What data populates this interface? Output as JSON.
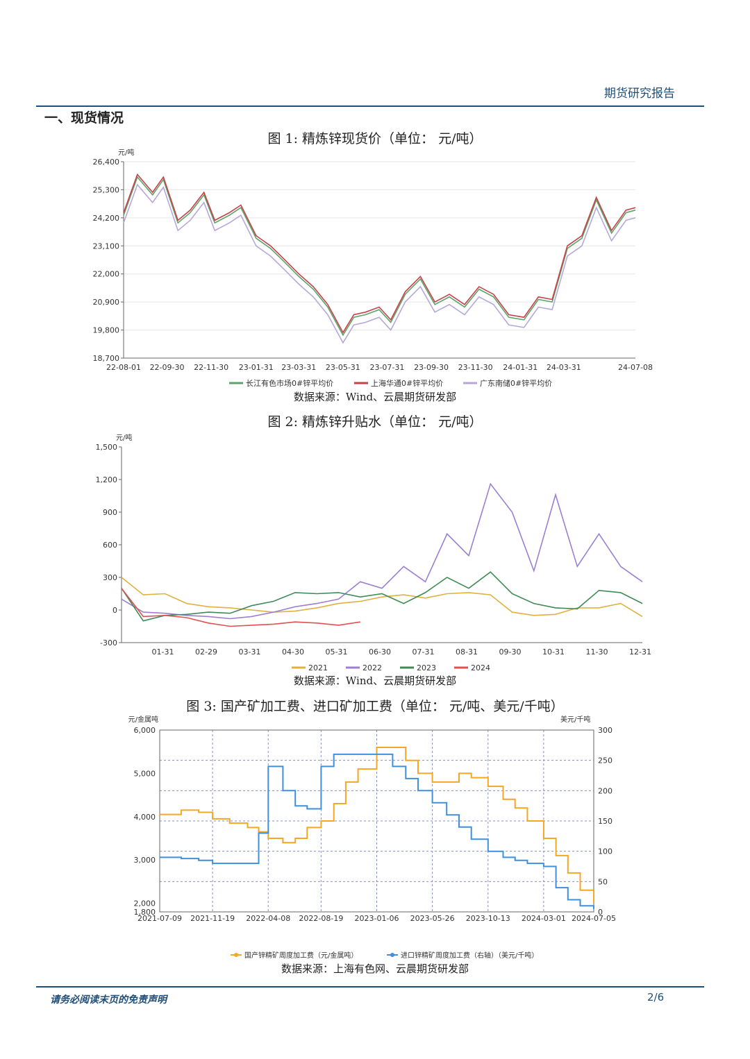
{
  "header": {
    "report_type": "期货研究报告"
  },
  "section": {
    "title": "一、现货情况"
  },
  "footer": {
    "disclaimer": "请务必阅读末页的免责声明",
    "page": "2/6"
  },
  "charts": [
    {
      "title": "图 1:  精炼锌现货价（单位： 元/吨）",
      "source": "数据来源：Wind、云晨期货研发部"
    },
    {
      "title": "图 2:  精炼锌升贴水（单位： 元/吨）",
      "source": "数据来源：Wind、云晨期货研发部"
    },
    {
      "title": "图 3:  国产矿加工费、进口矿加工费（单位： 元/吨、美元/千吨）",
      "source": "数据来源：上海有色网、云晨期货研发部"
    }
  ],
  "chart_data": [
    {
      "type": "line",
      "title": "图 1:  精炼锌现货价（单位： 元/吨）",
      "ylabel": "元/吨",
      "ylim": [
        18700,
        26400
      ],
      "yticks": [
        18700,
        19800,
        20900,
        22000,
        23100,
        24200,
        25300,
        26400
      ],
      "ytick_labels": [
        "18,700",
        "19,800",
        "20,900",
        "22,000",
        "23,100",
        "24,200",
        "25,300",
        "26,400"
      ],
      "xtick_labels": [
        "22-08-01",
        "22-09-30",
        "22-11-30",
        "23-01-31",
        "23-03-31",
        "23-05-31",
        "23-07-31",
        "23-09-30",
        "23-11-30",
        "24-01-31",
        "24-03-31",
        "24-07-08"
      ],
      "x_dates": [
        "2022-08-01",
        "2022-08-20",
        "2022-09-10",
        "2022-09-25",
        "2022-10-15",
        "2022-11-01",
        "2022-11-20",
        "2022-12-05",
        "2022-12-25",
        "2023-01-10",
        "2023-01-31",
        "2023-02-20",
        "2023-03-10",
        "2023-03-31",
        "2023-04-20",
        "2023-05-10",
        "2023-05-31",
        "2023-06-15",
        "2023-07-01",
        "2023-07-20",
        "2023-08-05",
        "2023-08-25",
        "2023-09-15",
        "2023-10-05",
        "2023-10-25",
        "2023-11-15",
        "2023-12-05",
        "2023-12-25",
        "2024-01-15",
        "2024-02-05",
        "2024-02-25",
        "2024-03-15",
        "2024-04-05",
        "2024-04-25",
        "2024-05-15",
        "2024-06-05",
        "2024-06-25",
        "2024-07-08"
      ],
      "grid": true,
      "legend": "bottom",
      "series": [
        {
          "name": "长江有色市场0#锌平均价",
          "color": "#5aa469",
          "values": [
            24300,
            25800,
            25100,
            25700,
            24000,
            24400,
            25100,
            24000,
            24300,
            24600,
            23400,
            23000,
            22500,
            21900,
            21400,
            20700,
            19600,
            20300,
            20400,
            20600,
            20100,
            21200,
            21800,
            20800,
            21100,
            20700,
            21400,
            21100,
            20300,
            20200,
            21000,
            20900,
            23000,
            23400,
            24900,
            23600,
            24400,
            24500
          ]
        },
        {
          "name": "上海华通0#锌平均价",
          "color": "#c8404a",
          "values": [
            24400,
            25900,
            25200,
            25800,
            24100,
            24500,
            25200,
            24100,
            24400,
            24700,
            23500,
            23100,
            22600,
            22000,
            21500,
            20800,
            19700,
            20400,
            20500,
            20700,
            20200,
            21300,
            21900,
            20900,
            21200,
            20800,
            21500,
            21200,
            20400,
            20300,
            21100,
            21000,
            23100,
            23500,
            25000,
            23700,
            24500,
            24600
          ]
        },
        {
          "name": "广东南储0#锌平均价",
          "color": "#b7a7d9",
          "values": [
            24000,
            25500,
            24800,
            25400,
            23700,
            24100,
            24800,
            23700,
            24000,
            24300,
            23100,
            22700,
            22200,
            21600,
            21100,
            20400,
            19300,
            20000,
            20100,
            20300,
            19800,
            20900,
            21500,
            20500,
            20800,
            20400,
            21100,
            20800,
            20000,
            19900,
            20700,
            20600,
            22700,
            23100,
            24600,
            23300,
            24100,
            24200
          ]
        }
      ]
    },
    {
      "type": "line",
      "title": "图 2:  精炼锌升贴水（单位： 元/吨）",
      "ylabel": "元/吨",
      "ylim": [
        -300,
        1500
      ],
      "yticks": [
        -300,
        0,
        300,
        600,
        900,
        1200,
        1500
      ],
      "ytick_labels": [
        "-300",
        "0",
        "300",
        "600",
        "900",
        "1,200",
        "1,500"
      ],
      "xtick_labels": [
        "01-31",
        "02-29",
        "03-31",
        "04-30",
        "05-31",
        "06-30",
        "07-31",
        "08-31",
        "09-30",
        "10-31",
        "11-30",
        "12-31"
      ],
      "x_months": [
        0.0,
        0.5,
        1.0,
        1.5,
        2.0,
        2.5,
        3.0,
        3.5,
        4.0,
        4.5,
        5.0,
        5.5,
        6.0,
        6.5,
        7.0,
        7.5,
        8.0,
        8.5,
        9.0,
        9.5,
        10.0,
        10.5,
        11.0,
        11.5,
        12.0
      ],
      "grid": false,
      "legend": "bottom",
      "series": [
        {
          "name": "2021",
          "color": "#e0b040",
          "values": [
            300,
            140,
            150,
            60,
            30,
            20,
            0,
            -20,
            -10,
            20,
            60,
            80,
            120,
            140,
            110,
            150,
            160,
            140,
            -20,
            -50,
            -40,
            20,
            20,
            60,
            -60
          ]
        },
        {
          "name": "2022",
          "color": "#9b7fd0",
          "values": [
            100,
            -20,
            -30,
            -50,
            -60,
            -80,
            -60,
            -20,
            30,
            60,
            100,
            260,
            200,
            400,
            260,
            700,
            500,
            1160,
            900,
            360,
            1060,
            400,
            700,
            400,
            260
          ]
        },
        {
          "name": "2023",
          "color": "#3f8a55",
          "values": [
            200,
            -100,
            -50,
            -40,
            -20,
            -30,
            40,
            80,
            160,
            150,
            160,
            120,
            150,
            60,
            160,
            300,
            200,
            350,
            150,
            60,
            20,
            10,
            180,
            160,
            60
          ]
        },
        {
          "name": "2024",
          "color": "#e05050",
          "values": [
            200,
            -60,
            -50,
            -70,
            -120,
            -150,
            -140,
            -130,
            -110,
            -120,
            -140,
            -110,
            null,
            null,
            null,
            null,
            null,
            null,
            null,
            null,
            null,
            null,
            null,
            null,
            null
          ]
        }
      ]
    },
    {
      "type": "line",
      "title": "图 3:  国产矿加工费、进口矿加工费（单位： 元/吨、美元/千吨）",
      "ylabel_left": "元/金属吨",
      "ylabel_right": "美元/千吨",
      "ylim_left": [
        1800,
        6000
      ],
      "yticks_left": [
        1800,
        2000,
        3000,
        4000,
        5000,
        6000
      ],
      "ytick_labels_left": [
        "1,800",
        "2,000",
        "3,000",
        "4,000",
        "5,000",
        "6,000"
      ],
      "ylim_right": [
        0,
        300
      ],
      "yticks_right": [
        0,
        50,
        100,
        150,
        200,
        250,
        300
      ],
      "ytick_labels_right": [
        "0",
        "50",
        "100",
        "150",
        "200",
        "250",
        "300"
      ],
      "xtick_labels": [
        "2021-07-09",
        "2021-11-19",
        "2022-04-08",
        "2022-08-19",
        "2023-01-06",
        "2023-05-26",
        "2023-10-13",
        "2024-03-01",
        "2024-07-05"
      ],
      "x_dates": [
        "2021-07-09",
        "2021-09-01",
        "2021-10-15",
        "2021-11-19",
        "2022-01-01",
        "2022-02-15",
        "2022-03-15",
        "2022-04-08",
        "2022-05-15",
        "2022-06-15",
        "2022-07-15",
        "2022-08-19",
        "2022-09-20",
        "2022-10-20",
        "2022-11-20",
        "2023-01-06",
        "2023-02-15",
        "2023-03-20",
        "2023-04-20",
        "2023-05-26",
        "2023-07-01",
        "2023-08-01",
        "2023-09-01",
        "2023-10-13",
        "2023-11-20",
        "2023-12-20",
        "2024-01-20",
        "2024-03-01",
        "2024-04-01",
        "2024-05-01",
        "2024-06-01",
        "2024-07-05"
      ],
      "grid": true,
      "legend": "bottom",
      "series": [
        {
          "name": "国产锌精矿周度加工费（元/金属吨）",
          "axis": "left",
          "color": "#f5a623",
          "values": [
            4050,
            4150,
            4100,
            3950,
            3850,
            3750,
            3650,
            3500,
            3400,
            3500,
            3750,
            3900,
            4300,
            4800,
            5100,
            5600,
            5600,
            5300,
            5000,
            4800,
            4800,
            5000,
            4900,
            4700,
            4400,
            4200,
            3900,
            3500,
            3100,
            2700,
            2300,
            2000
          ]
        },
        {
          "name": "进口锌精矿周度加工费（右轴）（美元/千吨）",
          "axis": "right",
          "color": "#3f8fdb",
          "values": [
            90,
            88,
            85,
            80,
            80,
            80,
            130,
            240,
            200,
            175,
            170,
            240,
            260,
            260,
            260,
            260,
            240,
            220,
            200,
            180,
            160,
            140,
            120,
            100,
            90,
            85,
            80,
            75,
            40,
            20,
            10,
            5
          ]
        }
      ]
    }
  ]
}
